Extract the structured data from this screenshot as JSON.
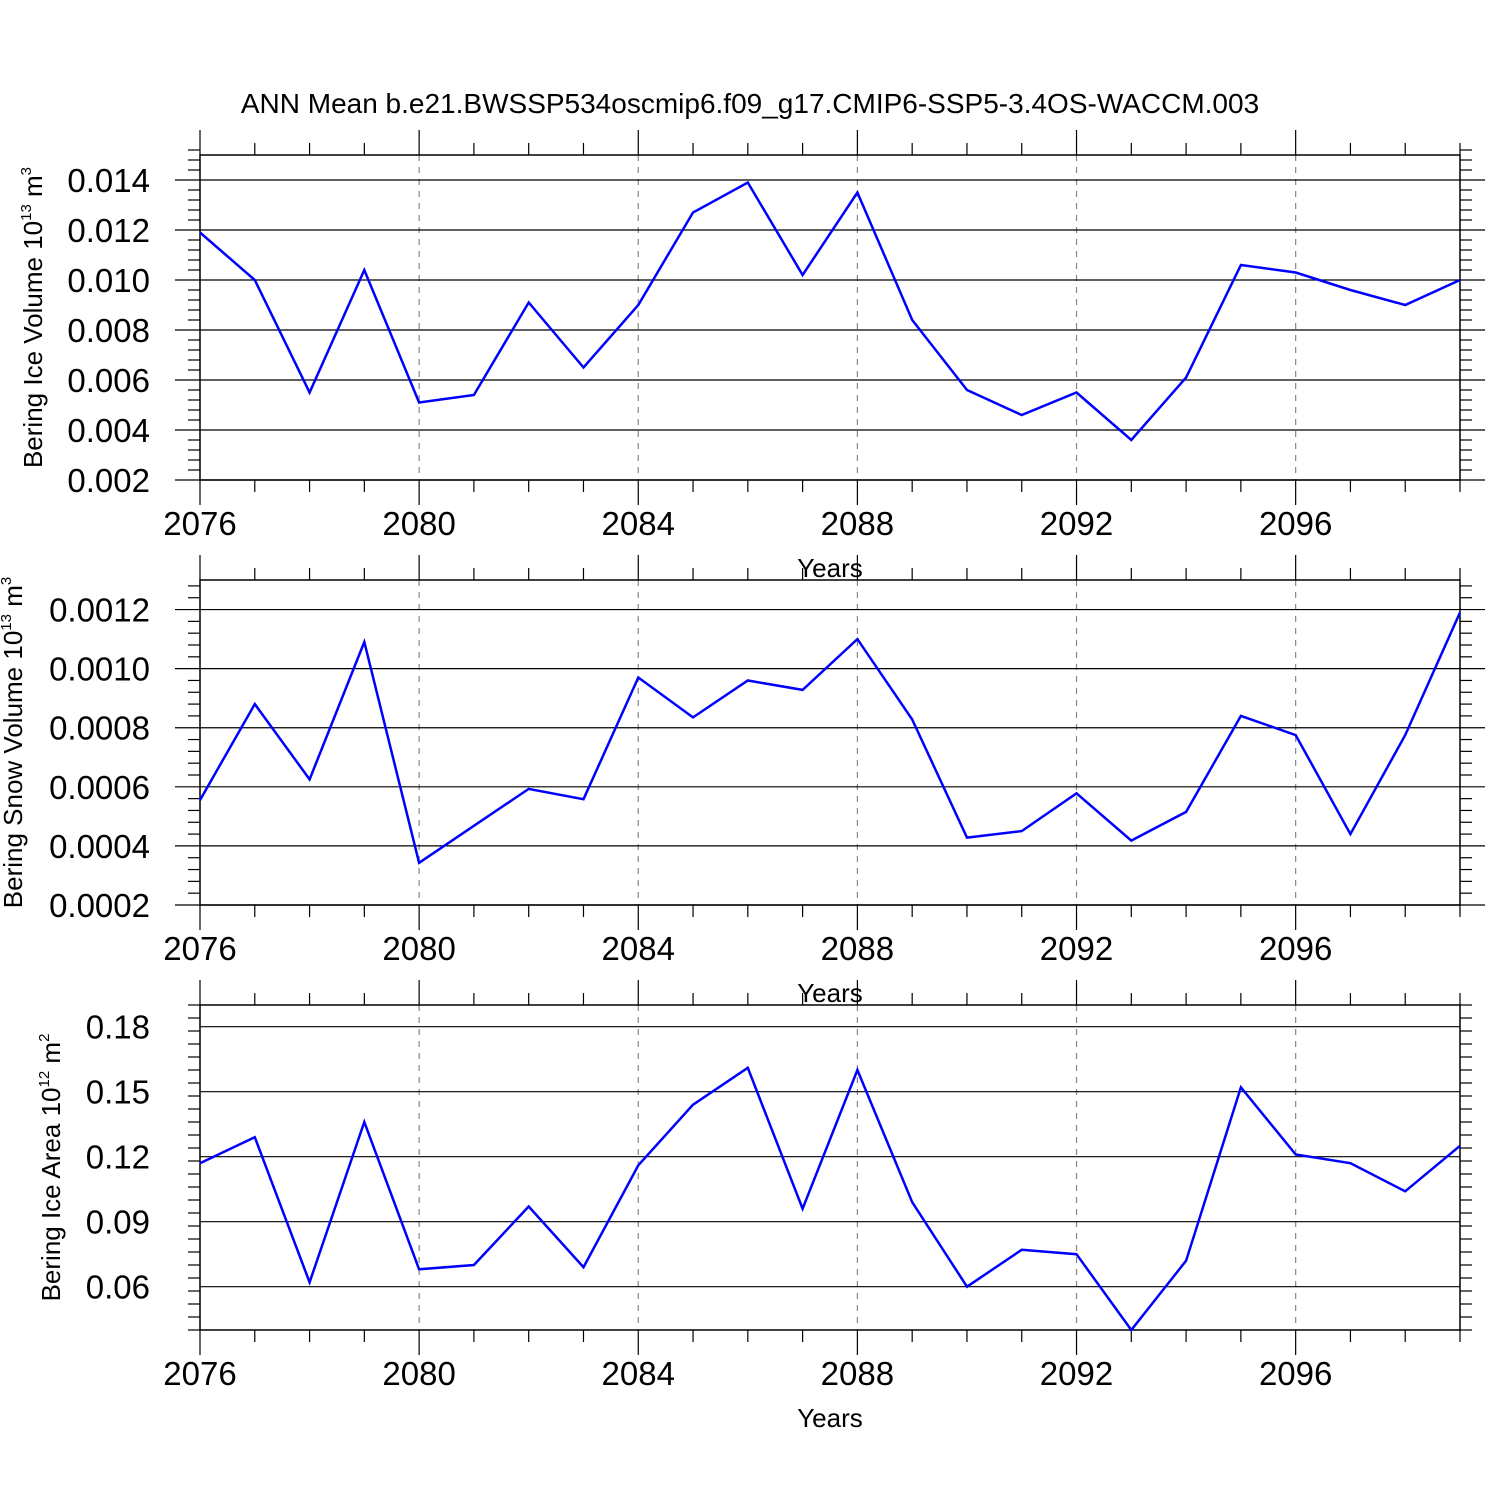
{
  "figure": {
    "title": "ANN Mean b.e21.BWSSP534oscmip6.f09_g17.CMIP6-SSP5-3.4OS-WACCM.003",
    "line_color": "#0000ff"
  },
  "chart_data": [
    {
      "type": "line",
      "ylabel_main": "Bering Ice Volume 10",
      "ylabel_exp": "13",
      "ylabel_unit": " m",
      "ylabel_unit_exp": "3",
      "xlabel": "Years",
      "xlim": [
        2076,
        2099
      ],
      "ylim": [
        0.002,
        0.015
      ],
      "xticks": [
        2076,
        2080,
        2084,
        2088,
        2092,
        2096
      ],
      "xtick_labels": [
        "2076",
        "2080",
        "2084",
        "2088",
        "2092",
        "2096"
      ],
      "yticks": [
        0.002,
        0.004,
        0.006,
        0.008,
        0.01,
        0.012,
        0.014
      ],
      "ytick_labels": [
        "0.002",
        "0.004",
        "0.006",
        "0.008",
        "0.010",
        "0.012",
        "0.014"
      ],
      "x": [
        2076,
        2077,
        2078,
        2079,
        2080,
        2081,
        2082,
        2083,
        2084,
        2085,
        2086,
        2087,
        2088,
        2089,
        2090,
        2091,
        2092,
        2093,
        2094,
        2095,
        2096,
        2097,
        2098,
        2099
      ],
      "y": [
        0.0119,
        0.01,
        0.0055,
        0.0104,
        0.0051,
        0.0054,
        0.0091,
        0.0065,
        0.009,
        0.0127,
        0.0139,
        0.0102,
        0.0135,
        0.0084,
        0.0056,
        0.0046,
        0.0055,
        0.0036,
        0.0061,
        0.0106,
        0.0103,
        0.0096,
        0.009,
        0.01
      ]
    },
    {
      "type": "line",
      "ylabel_main": "Bering Snow Volume 10",
      "ylabel_exp": "13",
      "ylabel_unit": " m",
      "ylabel_unit_exp": "3",
      "xlabel": "Years",
      "xlim": [
        2076,
        2099
      ],
      "ylim": [
        0.0002,
        0.0013
      ],
      "xticks": [
        2076,
        2080,
        2084,
        2088,
        2092,
        2096
      ],
      "xtick_labels": [
        "2076",
        "2080",
        "2084",
        "2088",
        "2092",
        "2096"
      ],
      "yticks": [
        0.0002,
        0.0004,
        0.0006,
        0.0008,
        0.001,
        0.0012
      ],
      "ytick_labels": [
        "0.0002",
        "0.0004",
        "0.0006",
        "0.0008",
        "0.0010",
        "0.0012"
      ],
      "x": [
        2076,
        2077,
        2078,
        2079,
        2080,
        2081,
        2082,
        2083,
        2084,
        2085,
        2086,
        2087,
        2088,
        2089,
        2090,
        2091,
        2092,
        2093,
        2094,
        2095,
        2096,
        2097,
        2098,
        2099
      ],
      "y": [
        0.000555,
        0.00088,
        0.000625,
        0.00109,
        0.000343,
        0.000468,
        0.000593,
        0.000558,
        0.00097,
        0.000835,
        0.00096,
        0.000928,
        0.0011,
        0.000828,
        0.000428,
        0.00045,
        0.000578,
        0.000418,
        0.000515,
        0.00084,
        0.000775,
        0.00044,
        0.000775,
        0.00119
      ]
    },
    {
      "type": "line",
      "ylabel_main": "Bering Ice Area 10",
      "ylabel_exp": "12",
      "ylabel_unit": " m",
      "ylabel_unit_exp": "2",
      "xlabel": "Years",
      "xlim": [
        2076,
        2099
      ],
      "ylim": [
        0.04,
        0.19
      ],
      "xticks": [
        2076,
        2080,
        2084,
        2088,
        2092,
        2096
      ],
      "xtick_labels": [
        "2076",
        "2080",
        "2084",
        "2088",
        "2092",
        "2096"
      ],
      "yticks": [
        0.06,
        0.09,
        0.12,
        0.15,
        0.18
      ],
      "ytick_labels": [
        "0.06",
        "0.09",
        "0.12",
        "0.15",
        "0.18"
      ],
      "x": [
        2076,
        2077,
        2078,
        2079,
        2080,
        2081,
        2082,
        2083,
        2084,
        2085,
        2086,
        2087,
        2088,
        2089,
        2090,
        2091,
        2092,
        2093,
        2094,
        2095,
        2096,
        2097,
        2098,
        2099
      ],
      "y": [
        0.117,
        0.129,
        0.062,
        0.136,
        0.068,
        0.07,
        0.097,
        0.069,
        0.116,
        0.144,
        0.161,
        0.096,
        0.16,
        0.099,
        0.06,
        0.077,
        0.075,
        0.04,
        0.072,
        0.152,
        0.121,
        0.117,
        0.104,
        0.125
      ]
    }
  ]
}
